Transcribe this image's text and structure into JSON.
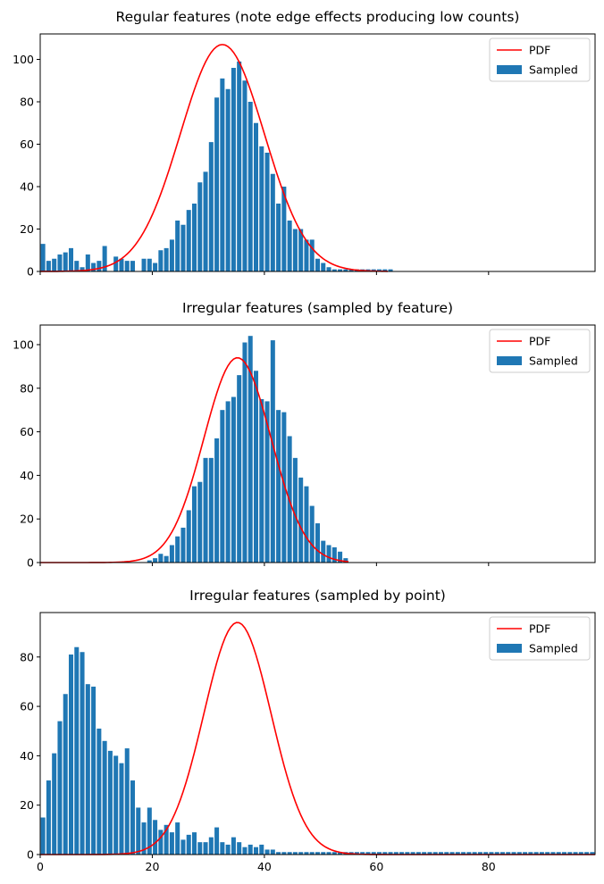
{
  "chart_data": [
    {
      "type": "bar",
      "title": "Regular features (note edge effects producing low counts)",
      "xlim": [
        0,
        99
      ],
      "ylim": [
        0,
        112
      ],
      "xticks": [
        0,
        20,
        40,
        60,
        80
      ],
      "xtick_labels_visible": false,
      "yticks": [
        0,
        20,
        40,
        60,
        80,
        100
      ],
      "legend": {
        "placement": "upper right",
        "entries": [
          {
            "label": "PDF",
            "kind": "line",
            "color": "#ff0000"
          },
          {
            "label": "Sampled",
            "kind": "bar",
            "color": "#1f77b4"
          }
        ]
      },
      "bar_color": "#1f77b4",
      "line_color": "#ff0000",
      "series": [
        {
          "name": "Sampled",
          "kind": "bar",
          "x": [
            0,
            1,
            2,
            3,
            4,
            5,
            6,
            7,
            8,
            9,
            10,
            11,
            12,
            13,
            14,
            15,
            16,
            17,
            18,
            19,
            20,
            21,
            22,
            23,
            24,
            25,
            26,
            27,
            28,
            29,
            30,
            31,
            32,
            33,
            34,
            35,
            36,
            37,
            38,
            39,
            40,
            41,
            42,
            43,
            44,
            45,
            46,
            47,
            48,
            49,
            50,
            51,
            52,
            53,
            54,
            55,
            56,
            57,
            58,
            59,
            60,
            61,
            62
          ],
          "values": [
            13,
            5,
            6,
            8,
            9,
            11,
            5,
            2,
            8,
            4,
            5,
            12,
            0,
            7,
            6,
            5,
            5,
            0,
            6,
            6,
            4,
            10,
            11,
            15,
            24,
            22,
            29,
            32,
            42,
            47,
            61,
            82,
            91,
            86,
            96,
            99,
            90,
            80,
            70,
            59,
            56,
            46,
            32,
            40,
            24,
            20,
            20,
            15,
            15,
            6,
            4,
            2,
            1,
            1,
            1,
            1,
            1,
            1,
            1,
            1,
            1,
            1,
            1
          ]
        },
        {
          "name": "PDF",
          "kind": "line",
          "mean": 32.5,
          "sd": 7.5,
          "peak": 107,
          "x_range": [
            0,
            62
          ]
        }
      ]
    },
    {
      "type": "bar",
      "title": "Irregular features (sampled by feature)",
      "xlim": [
        0,
        99
      ],
      "ylim": [
        0,
        109
      ],
      "xticks": [
        0,
        20,
        40,
        60,
        80
      ],
      "xtick_labels_visible": false,
      "yticks": [
        0,
        20,
        40,
        60,
        80,
        100
      ],
      "legend": {
        "placement": "upper right",
        "entries": [
          {
            "label": "PDF",
            "kind": "line",
            "color": "#ff0000"
          },
          {
            "label": "Sampled",
            "kind": "bar",
            "color": "#1f77b4"
          }
        ]
      },
      "bar_color": "#1f77b4",
      "line_color": "#ff0000",
      "series": [
        {
          "name": "Sampled",
          "kind": "bar",
          "x": [
            19,
            20,
            21,
            22,
            23,
            24,
            25,
            26,
            27,
            28,
            29,
            30,
            31,
            32,
            33,
            34,
            35,
            36,
            37,
            38,
            39,
            40,
            41,
            42,
            43,
            44,
            45,
            46,
            47,
            48,
            49,
            50,
            51,
            52,
            53,
            54
          ],
          "values": [
            1,
            2,
            4,
            3,
            8,
            12,
            16,
            24,
            35,
            37,
            48,
            48,
            57,
            70,
            74,
            76,
            86,
            101,
            104,
            88,
            75,
            74,
            102,
            70,
            69,
            58,
            48,
            39,
            35,
            26,
            18,
            10,
            8,
            7,
            5,
            2
          ]
        },
        {
          "name": "PDF",
          "kind": "line",
          "mean": 35.2,
          "sd": 6.0,
          "peak": 94,
          "x_range": [
            0,
            55
          ]
        }
      ]
    },
    {
      "type": "bar",
      "title": "Irregular features (sampled by point)",
      "xlim": [
        0,
        99
      ],
      "ylim": [
        0,
        98
      ],
      "xticks": [
        0,
        20,
        40,
        60,
        80
      ],
      "xtick_labels": [
        "0",
        "20",
        "40",
        "60",
        "80"
      ],
      "xtick_labels_visible": true,
      "yticks": [
        0,
        20,
        40,
        60,
        80
      ],
      "legend": {
        "placement": "upper right",
        "entries": [
          {
            "label": "PDF",
            "kind": "line",
            "color": "#ff0000"
          },
          {
            "label": "Sampled",
            "kind": "bar",
            "color": "#1f77b4"
          }
        ]
      },
      "bar_color": "#1f77b4",
      "line_color": "#ff0000",
      "series": [
        {
          "name": "Sampled",
          "kind": "bar",
          "x": [
            0,
            1,
            2,
            3,
            4,
            5,
            6,
            7,
            8,
            9,
            10,
            11,
            12,
            13,
            14,
            15,
            16,
            17,
            18,
            19,
            20,
            21,
            22,
            23,
            24,
            25,
            26,
            27,
            28,
            29,
            30,
            31,
            32,
            33,
            34,
            35,
            36,
            37,
            38,
            39,
            40,
            41,
            42,
            43,
            44,
            45,
            46,
            47,
            48,
            49,
            50,
            51,
            52,
            53,
            54,
            55,
            56,
            57,
            58,
            59,
            60,
            61,
            62,
            63,
            64,
            65,
            66,
            67,
            68,
            69,
            70,
            71,
            72,
            73,
            74,
            75,
            76,
            77,
            78,
            79,
            80,
            81,
            82,
            83,
            84,
            85,
            86,
            87,
            88,
            89,
            90,
            91,
            92,
            93,
            94,
            95,
            96,
            97,
            98
          ],
          "values": [
            15,
            30,
            41,
            54,
            65,
            81,
            84,
            82,
            69,
            68,
            51,
            46,
            42,
            40,
            37,
            43,
            30,
            19,
            13,
            19,
            14,
            10,
            12,
            9,
            13,
            6,
            8,
            9,
            5,
            5,
            7,
            11,
            5,
            4,
            7,
            5,
            3,
            4,
            3,
            4,
            2,
            2,
            1,
            1,
            1,
            1,
            1,
            1,
            1,
            1,
            1,
            1,
            1,
            1,
            1,
            1,
            1,
            1,
            1,
            1,
            1,
            1,
            1,
            1,
            1,
            1,
            1,
            1,
            1,
            1,
            1,
            1,
            1,
            1,
            1,
            1,
            1,
            1,
            1,
            1,
            1,
            1,
            1,
            1,
            1,
            1,
            1,
            1,
            1,
            1,
            1,
            1,
            1,
            1,
            1,
            1,
            1,
            1,
            1
          ]
        },
        {
          "name": "PDF",
          "kind": "line",
          "mean": 35.2,
          "sd": 6.0,
          "peak": 94,
          "x_range": [
            0,
            99
          ]
        }
      ]
    }
  ]
}
